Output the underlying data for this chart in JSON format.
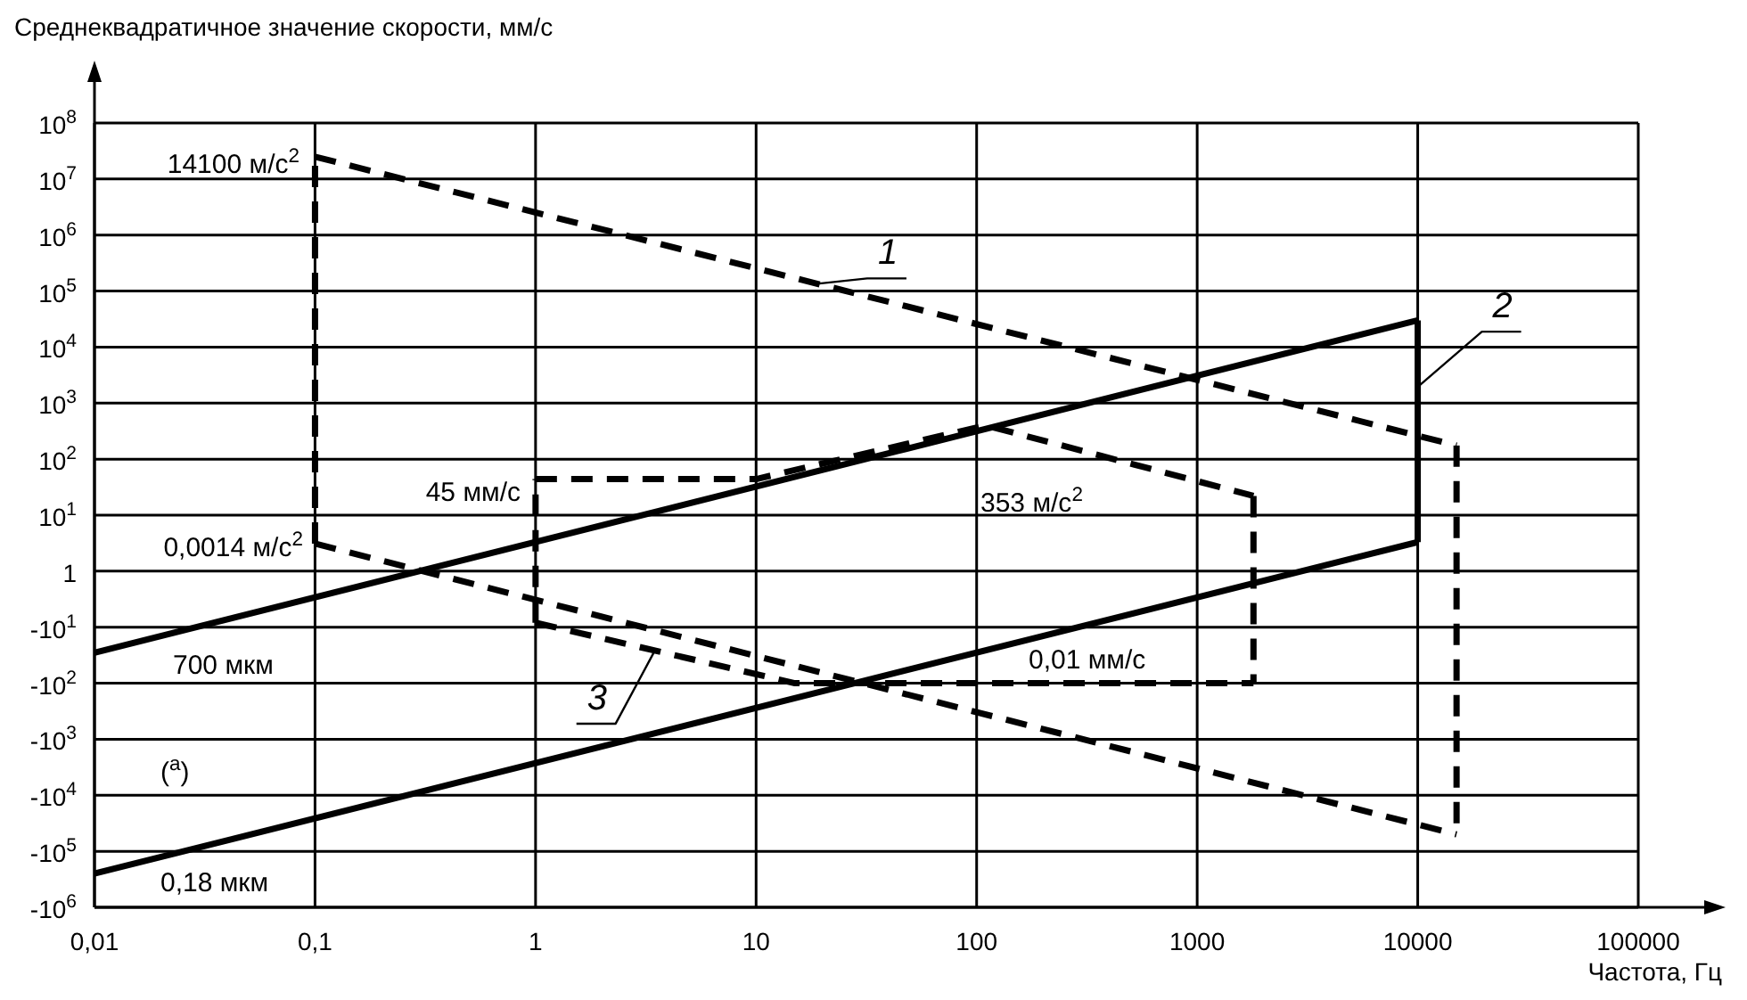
{
  "chart_data": {
    "type": "line",
    "ylabel": "Среднеквадратичное значение скорости, мм/с",
    "xlabel": "Частота, Гц",
    "log": "xy",
    "grid": true,
    "marker": "none",
    "xlim": [
      0.01,
      100000
    ],
    "xticks": [
      {
        "value": 0.01,
        "label": "0,01"
      },
      {
        "value": 0.1,
        "label": "0,1"
      },
      1,
      10,
      100,
      1000,
      10000,
      100000
    ],
    "ylim": [
      1e-06,
      100000000
    ],
    "yticks": [
      {
        "value": 100000000,
        "label": "10$^{8}$"
      },
      {
        "value": 10000000,
        "label": "10$^{7}$"
      },
      {
        "value": 1000000,
        "label": "10$^{6}$"
      },
      {
        "value": 100000,
        "label": "10$^{5}$"
      },
      {
        "value": 10000,
        "label": "10$^{4}$"
      },
      {
        "value": 1000,
        "label": "10$^{3}$"
      },
      {
        "value": 100,
        "label": "10$^{2}$"
      },
      {
        "value": 10,
        "label": "10$^{1}$"
      },
      1,
      {
        "value": 0.1,
        "label": "-10$^{1}$"
      },
      {
        "value": 0.01,
        "label": "-10$^{2}$"
      },
      {
        "value": 0.001,
        "label": "-10$^{3}$"
      },
      {
        "value": 0.0001,
        "label": "-10$^{4}$"
      },
      {
        "value": 1e-05,
        "label": "-10$^{5}$"
      },
      {
        "value": 1e-06,
        "label": "-10$^{6}$"
      }
    ],
    "series": [
      {
        "name": "1",
        "color": "#000000",
        "line_style": "dashed",
        "x": [
          0.1,
          15000
        ],
        "values": [
          25000000,
          175
        ]
      },
      {
        "color": "#000000",
        "line_style": "dashed",
        "x": [
          15000,
          15000
        ],
        "values": [
          175,
          2e-05
        ]
      },
      {
        "color": "#000000",
        "line_style": "dashed",
        "x": [
          0.1,
          15000
        ],
        "values": [
          3.1,
          2e-05
        ]
      },
      {
        "color": "#000000",
        "line_style": "dashed",
        "x": [
          0.1,
          0.1
        ],
        "values": [
          3.1,
          25000000
        ]
      },
      {
        "color": "#000000",
        "line_style": "solid",
        "x": [
          0.01,
          10000
        ],
        "values": [
          0.035,
          30000
        ]
      },
      {
        "name": "2",
        "color": "#000000",
        "line_style": "solid",
        "x": [
          10000,
          10000
        ],
        "values": [
          30000,
          3.3
        ]
      },
      {
        "color": "#000000",
        "line_style": "solid",
        "x": [
          0.01,
          10000
        ],
        "values": [
          4e-06,
          3.3
        ]
      },
      {
        "color": "#000000",
        "line_style": "dashed",
        "x": [
          1,
          10,
          110,
          1800
        ],
        "values": [
          44,
          44,
          400,
          22
        ]
      },
      {
        "color": "#000000",
        "line_style": "dashed",
        "x": [
          1800,
          1800
        ],
        "values": [
          22,
          0.01
        ]
      },
      {
        "name": "3",
        "color": "#000000",
        "line_style": "dashed",
        "x": [
          1,
          15,
          1800
        ],
        "values": [
          0.12,
          0.01,
          0.01
        ]
      },
      {
        "color": "#000000",
        "line_style": "dashed",
        "x": [
          1,
          1
        ],
        "values": [
          0.12,
          44
        ]
      }
    ],
    "annotations": [
      "14100 м/с$^{2}$",
      "0,0014 м/с$^{2}$",
      "45 мм/с",
      "353 м/с$^{2}$",
      "700 мкм",
      "0,01 мм/с",
      "0,18 мкм",
      "($^{a}$)"
    ]
  }
}
